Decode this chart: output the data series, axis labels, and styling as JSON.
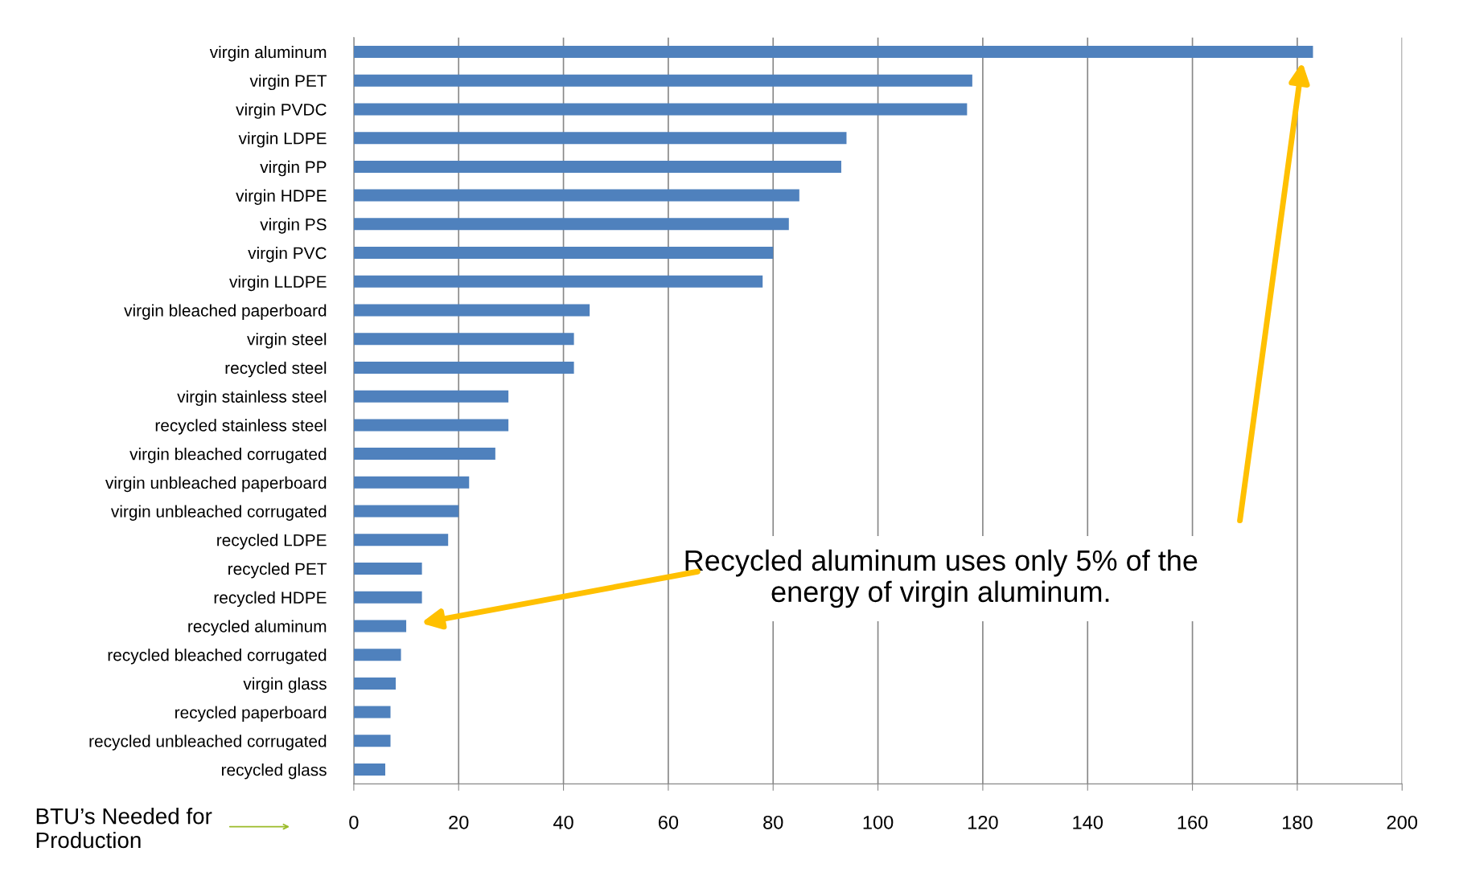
{
  "chart_data": {
    "type": "bar",
    "orientation": "horizontal",
    "xlabel": "BTU’s Needed for Production",
    "categories": [
      "virgin aluminum",
      "virgin PET",
      "virgin PVDC",
      "virgin LDPE",
      "virgin PP",
      "virgin HDPE",
      "virgin PS",
      "virgin PVC",
      "virgin LLDPE",
      "virgin bleached paperboard",
      "virgin steel",
      "recycled steel",
      "virgin stainless steel",
      "recycled stainless steel",
      "virgin bleached corrugated",
      "virgin unbleached paperboard",
      "virgin unbleached corrugated",
      "recycled LDPE",
      "recycled PET",
      "recycled HDPE",
      "recycled aluminum",
      "recycled bleached corrugated",
      "virgin glass",
      "recycled paperboard",
      "recycled unbleached corrugated",
      "recycled glass"
    ],
    "values": [
      183,
      118,
      117,
      94,
      93,
      85,
      83,
      80,
      78,
      45,
      42,
      42,
      29.5,
      29.5,
      27,
      22,
      20,
      18,
      13,
      13,
      10,
      9,
      8,
      7,
      7,
      6
    ],
    "color": "#4f81bd",
    "xlim": [
      0,
      200
    ],
    "xticks": [
      0,
      20,
      40,
      60,
      80,
      100,
      120,
      140,
      160,
      180,
      200
    ],
    "grid": "x",
    "annotations": [
      "Recycled aluminum uses only 5% of the\nenergy of virgin aluminum."
    ]
  }
}
